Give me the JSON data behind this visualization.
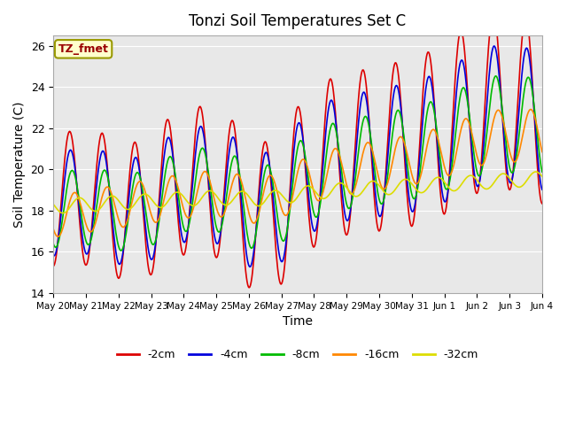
{
  "title": "Tonzi Soil Temperatures Set C",
  "xlabel": "Time",
  "ylabel": "Soil Temperature (C)",
  "ylim": [
    14,
    26.5
  ],
  "xlim_days": 15.5,
  "bg_color": "#e8e8e8",
  "label_color": "TZ_fmet",
  "series": {
    "-2cm": {
      "color": "#dd0000",
      "lw": 1.5
    },
    "-4cm": {
      "color": "#0000dd",
      "lw": 1.5
    },
    "-8cm": {
      "color": "#00bb00",
      "lw": 1.5
    },
    "-16cm": {
      "color": "#ff8800",
      "lw": 1.5
    },
    "-32cm": {
      "color": "#dddd00",
      "lw": 1.5
    }
  },
  "xtick_labels": [
    "May 20",
    "May 21",
    "May 22",
    "May 23",
    "May 24",
    "May 25",
    "May 26",
    "May 27",
    "May 28",
    "May 29",
    "May 30",
    "May 31",
    "Jun 1",
    "Jun 2",
    "Jun 3",
    "Jun 4"
  ],
  "ytick_labels": [
    14,
    16,
    18,
    20,
    22,
    24,
    26
  ]
}
